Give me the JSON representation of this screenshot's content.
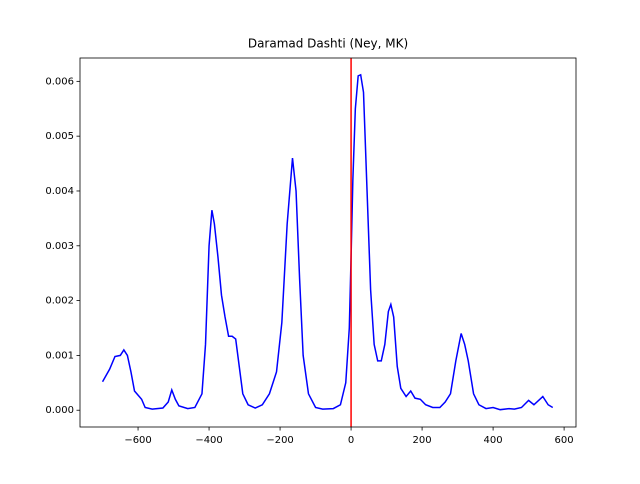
{
  "chart_data": {
    "type": "line",
    "title": "Daramad Dashti (Ney, MK)",
    "x": [
      -700,
      -680,
      -665,
      -650,
      -640,
      -630,
      -620,
      -610,
      -590,
      -580,
      -560,
      -530,
      -515,
      -505,
      -495,
      -485,
      -460,
      -440,
      -420,
      -410,
      -400,
      -392,
      -385,
      -375,
      -365,
      -355,
      -345,
      -335,
      -325,
      -315,
      -305,
      -290,
      -270,
      -250,
      -230,
      -210,
      -195,
      -180,
      -165,
      -155,
      -145,
      -135,
      -120,
      -100,
      -80,
      -50,
      -30,
      -15,
      -5,
      0,
      5,
      12,
      20,
      27,
      35,
      45,
      55,
      65,
      75,
      85,
      95,
      105,
      112,
      120,
      130,
      140,
      155,
      168,
      180,
      195,
      210,
      230,
      250,
      265,
      280,
      295,
      310,
      320,
      330,
      345,
      360,
      380,
      400,
      420,
      445,
      460,
      480,
      500,
      515,
      540,
      555,
      568
    ],
    "series": [
      {
        "color": "#0000ff",
        "values": [
          0.00052,
          0.00075,
          0.00098,
          0.001,
          0.0011,
          0.001,
          0.0007,
          0.00035,
          0.0002,
          5e-05,
          2e-05,
          4e-05,
          0.00015,
          0.00037,
          0.0002,
          8e-05,
          3e-05,
          5e-05,
          0.0003,
          0.0012,
          0.003,
          0.00365,
          0.0034,
          0.0028,
          0.0021,
          0.0017,
          0.00135,
          0.00135,
          0.0013,
          0.0008,
          0.0003,
          0.0001,
          4e-05,
          0.0001,
          0.0003,
          0.0007,
          0.0016,
          0.0034,
          0.0046,
          0.004,
          0.0024,
          0.001,
          0.0003,
          5e-05,
          2e-05,
          3e-05,
          0.0001,
          0.0005,
          0.0015,
          0.0028,
          0.0042,
          0.0055,
          0.0061,
          0.00612,
          0.0058,
          0.004,
          0.0022,
          0.0012,
          0.0009,
          0.0009,
          0.0012,
          0.0018,
          0.00193,
          0.0017,
          0.0008,
          0.0004,
          0.00025,
          0.00035,
          0.00022,
          0.0002,
          0.0001,
          5e-05,
          5e-05,
          0.00015,
          0.0003,
          0.0009,
          0.0014,
          0.0012,
          0.0009,
          0.0003,
          0.0001,
          3e-05,
          5e-05,
          1e-05,
          3e-05,
          2e-05,
          5e-05,
          0.00018,
          0.0001,
          0.00025,
          0.0001,
          5e-05
        ]
      }
    ],
    "vline": {
      "value": 0,
      "color": "#ff0000"
    },
    "xlim": [
      -763.5,
      633.5
    ],
    "xticks": [
      {
        "value": -600,
        "label": "−600"
      },
      {
        "value": -400,
        "label": "−400"
      },
      {
        "value": -200,
        "label": "−200"
      },
      0,
      200,
      400,
      600
    ],
    "ylim": [
      -0.000306,
      0.006426
    ],
    "yticks": [
      {
        "value": 0,
        "label": "0.000"
      },
      {
        "value": 0.001,
        "label": "0.001"
      },
      {
        "value": 0.002,
        "label": "0.002"
      },
      {
        "value": 0.003,
        "label": "0.003"
      },
      {
        "value": 0.004,
        "label": "0.004"
      },
      {
        "value": 0.005,
        "label": "0.005"
      },
      {
        "value": 0.006,
        "label": "0.006"
      }
    ]
  }
}
